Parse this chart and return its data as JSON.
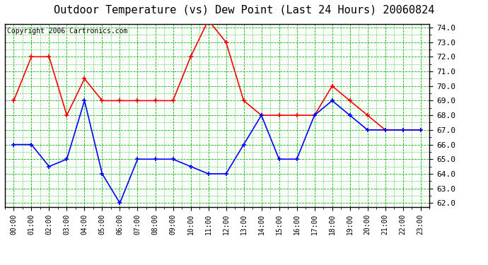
{
  "title": "Outdoor Temperature (vs) Dew Point (Last 24 Hours) 20060824",
  "copyright_text": "Copyright 2006 Cartronics.com",
  "hours": [
    0,
    1,
    2,
    3,
    4,
    5,
    6,
    7,
    8,
    9,
    10,
    11,
    12,
    13,
    14,
    15,
    16,
    17,
    18,
    19,
    20,
    21,
    22,
    23
  ],
  "temp_red": [
    69.0,
    72.0,
    72.0,
    68.0,
    70.5,
    69.0,
    69.0,
    69.0,
    69.0,
    69.0,
    72.0,
    74.5,
    73.0,
    69.0,
    68.0,
    68.0,
    68.0,
    68.0,
    70.0,
    69.0,
    68.0,
    67.0,
    67.0,
    67.0
  ],
  "dew_blue": [
    66.0,
    66.0,
    64.5,
    65.0,
    69.0,
    64.0,
    62.0,
    65.0,
    65.0,
    65.0,
    64.5,
    64.0,
    64.0,
    66.0,
    68.0,
    65.0,
    65.0,
    68.0,
    69.0,
    68.0,
    67.0,
    67.0,
    67.0,
    67.0
  ],
  "red_color": "#ff0000",
  "blue_color": "#0000ff",
  "bg_color": "#ffffff",
  "grid_color": "#00bb00",
  "ylim_min": 62.0,
  "ylim_max": 74.0,
  "title_fontsize": 11,
  "copyright_fontsize": 7,
  "tick_fontsize": 8,
  "xtick_fontsize": 7
}
